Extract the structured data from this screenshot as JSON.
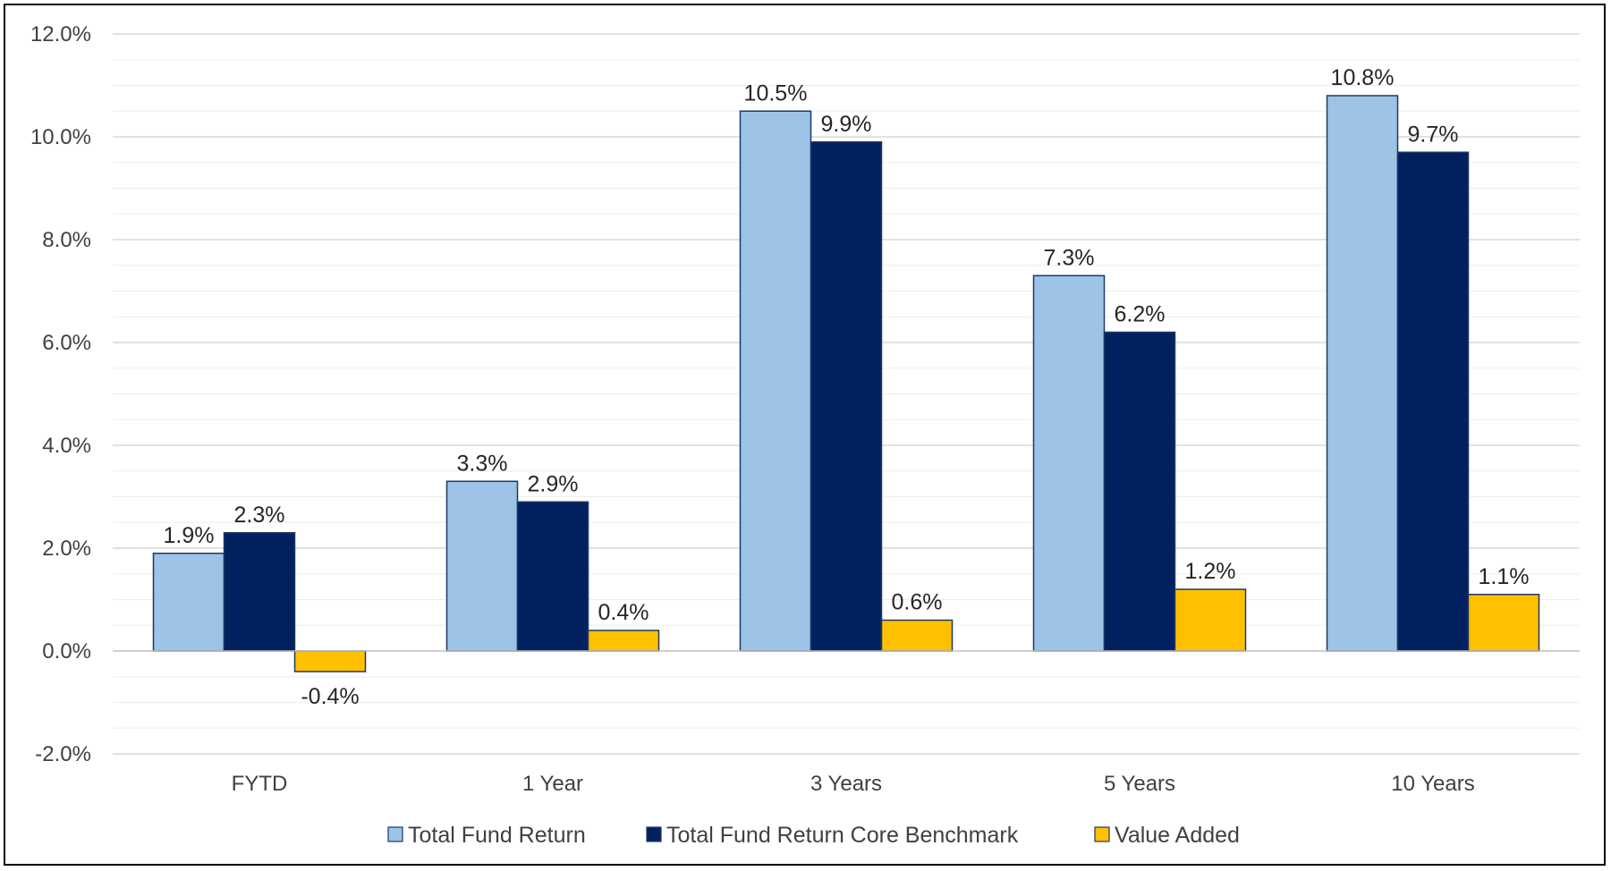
{
  "chart_data": {
    "type": "bar",
    "title": "",
    "xlabel": "",
    "ylabel": "",
    "categories": [
      "FYTD",
      "1 Year",
      "3 Years",
      "5 Years",
      "10 Years"
    ],
    "series": [
      {
        "name": "Total Fund Return",
        "values": [
          1.9,
          3.3,
          10.5,
          7.3,
          10.8
        ],
        "labels": [
          "1.9%",
          "3.3%",
          "10.5%",
          "7.3%",
          "10.8%"
        ],
        "color": "#9DC3E6"
      },
      {
        "name": "Total Fund Return Core Benchmark",
        "values": [
          2.3,
          2.9,
          9.9,
          6.2,
          9.7
        ],
        "labels": [
          "2.3%",
          "2.9%",
          "9.9%",
          "6.2%",
          "9.7%"
        ],
        "color": "#002060"
      },
      {
        "name": "Value Added",
        "values": [
          -0.4,
          0.4,
          0.6,
          1.2,
          1.1
        ],
        "labels": [
          "-0.4%",
          "0.4%",
          "0.6%",
          "1.2%",
          "1.1%"
        ],
        "color": "#FFC000"
      }
    ],
    "ylim": [
      -2.0,
      12.0
    ],
    "yticks": [
      -2.0,
      0.0,
      2.0,
      4.0,
      6.0,
      8.0,
      10.0,
      12.0
    ],
    "ytick_labels": [
      "-2.0%",
      "0.0%",
      "2.0%",
      "4.0%",
      "6.0%",
      "8.0%",
      "10.0%",
      "12.0%"
    ],
    "minor_gridlines": true,
    "grid": true,
    "legend_position": "bottom",
    "colors": {
      "bar_outline": "#1F3864",
      "major_grid": "#D0D0D0",
      "minor_grid": "#EDEDED",
      "axis": "#BFBFBF"
    }
  }
}
